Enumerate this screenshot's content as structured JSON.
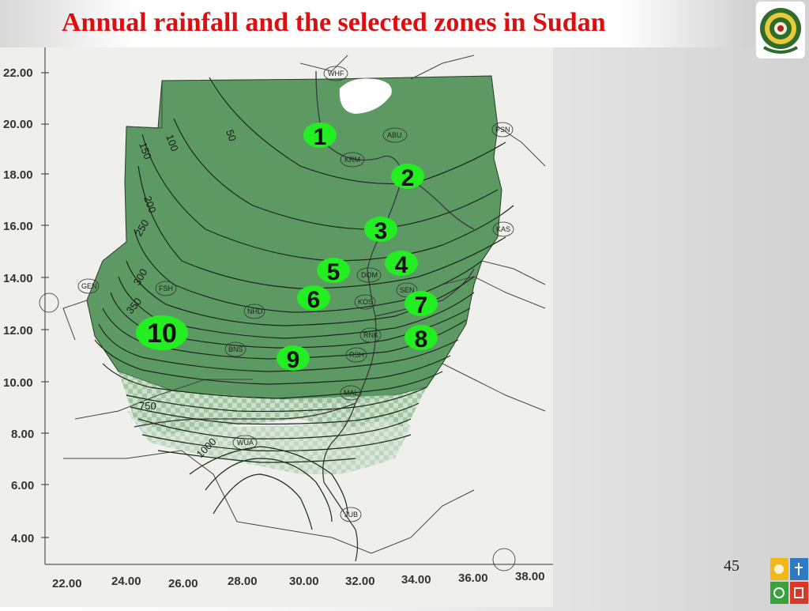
{
  "slide": {
    "title": "Annual rainfall and the selected zones in Sudan",
    "page_number": "45"
  },
  "map": {
    "y_axis_labels": [
      "22.00",
      "20.00",
      "18.00",
      "16.00",
      "14.00",
      "12.00",
      "10.00",
      "8.00",
      "6.00",
      "4.00"
    ],
    "x_axis_labels": [
      "22.00",
      "24.00",
      "26.00",
      "28.00",
      "30.00",
      "32.00",
      "34.00",
      "36.00",
      "38.00"
    ],
    "isohyet_labels": [
      "50",
      "100",
      "150",
      "200",
      "250",
      "300",
      "350",
      "750",
      "1000"
    ],
    "stations": [
      "WHF",
      "ABU",
      "PSN",
      "KRM",
      "KAS",
      "GEN",
      "FSH",
      "DOM",
      "KOS",
      "SEN",
      "NHD",
      "BNS",
      "RNK",
      "RSH",
      "MAL",
      "WUA",
      "JUB"
    ],
    "zones": [
      "1",
      "2",
      "3",
      "4",
      "5",
      "6",
      "7",
      "8",
      "9",
      "10"
    ],
    "colors": {
      "rainfall_fill": "#5d9a63",
      "zone_marker": "#22ee22",
      "title": "#d90f12",
      "contour": "#1a2a1a"
    }
  }
}
